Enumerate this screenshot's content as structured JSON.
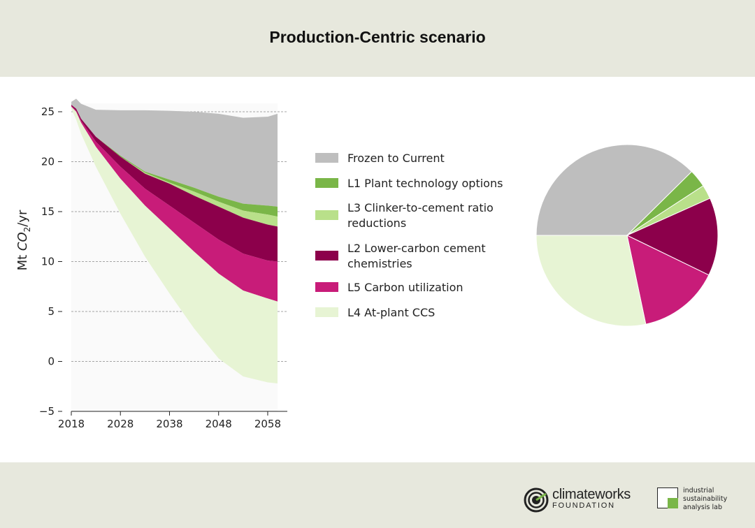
{
  "header": {
    "title": "Production-Centric scenario"
  },
  "chart_data": {
    "type": "area",
    "stacked": true,
    "title": "Production-Centric scenario",
    "xlabel": "",
    "ylabel": "Mt CO2/yr",
    "ylabel_parts": {
      "prefix": "Mt ",
      "italic": "CO",
      "sub": "2",
      "suffix": "/yr"
    },
    "xlim": [
      2018,
      2060
    ],
    "ylim": [
      -5,
      26.5
    ],
    "x_ticks": [
      2018,
      2028,
      2038,
      2048,
      2058
    ],
    "x_tick_labels": [
      "2018",
      "2028",
      "2038",
      "2048",
      "2058"
    ],
    "y_ticks": [
      -5,
      0,
      5,
      10,
      15,
      20,
      25
    ],
    "y_tick_labels": [
      "−5",
      "0",
      "5",
      "10",
      "15",
      "20",
      "25"
    ],
    "grid": "horizontal dashed",
    "x": [
      2018,
      2019,
      2020,
      2023,
      2028,
      2033,
      2038,
      2043,
      2048,
      2053,
      2058,
      2060
    ],
    "boundaries": {
      "top": [
        26.0,
        26.3,
        25.8,
        25.2,
        25.15,
        25.15,
        25.1,
        25.0,
        24.8,
        24.4,
        24.5,
        24.8
      ],
      "after_frozen": [
        25.7,
        25.3,
        24.3,
        22.5,
        20.6,
        19.0,
        18.2,
        17.4,
        16.5,
        15.8,
        15.6,
        15.5
      ],
      "after_l1": [
        25.7,
        25.3,
        24.3,
        22.5,
        20.5,
        18.9,
        17.9,
        17.0,
        16.0,
        15.1,
        14.7,
        14.5
      ],
      "after_l3": [
        25.7,
        25.3,
        24.3,
        22.5,
        20.5,
        18.8,
        17.8,
        16.6,
        15.5,
        14.4,
        13.7,
        13.5
      ],
      "after_l2": [
        25.6,
        25.1,
        24.1,
        22.0,
        19.5,
        17.3,
        15.6,
        13.9,
        12.2,
        10.8,
        10.1,
        10.0
      ],
      "after_l5": [
        25.5,
        25.0,
        23.9,
        21.5,
        18.3,
        15.6,
        13.3,
        11.0,
        8.8,
        7.1,
        6.3,
        6.0
      ],
      "after_l4": [
        25.3,
        24.2,
        22.8,
        19.5,
        14.8,
        10.5,
        6.8,
        3.3,
        0.3,
        -1.5,
        -2.1,
        -2.2
      ]
    },
    "series": [
      {
        "name": "Frozen to Current",
        "color": "#bebebe",
        "upper": "top",
        "lower": "after_frozen",
        "pie_share": 0.376
      },
      {
        "name": "L1 Plant technology options",
        "color": "#7ab648",
        "upper": "after_frozen",
        "lower": "after_l1",
        "pie_share": 0.032
      },
      {
        "name": "L3 Clinker-to-cement ratio reductions",
        "color": "#b9e08a",
        "upper": "after_l1",
        "lower": "after_l3",
        "pie_share": 0.025
      },
      {
        "name": "L2 Lower-carbon cement chemistries",
        "color": "#8c004b",
        "upper": "after_l3",
        "lower": "after_l2",
        "pie_share": 0.139
      },
      {
        "name": "L5 Carbon utilization",
        "color": "#c81c79",
        "upper": "after_l2",
        "lower": "after_l5",
        "pie_share": 0.145
      },
      {
        "name": "L4 At-plant CCS",
        "color": "#e7f4d4",
        "upper": "after_l5",
        "lower": "after_l4",
        "pie_share": 0.283
      }
    ],
    "legend": {
      "placement": "right",
      "lines": [
        [
          "Frozen to Current"
        ],
        [
          "L1 Plant technology options"
        ],
        [
          "L3 Clinker-to-cement ratio",
          "reductions"
        ],
        [
          "L2 Lower-carbon cement",
          "chemistries"
        ],
        [
          "L5 Carbon utilization"
        ],
        [
          "L4 At-plant CCS"
        ]
      ]
    },
    "pie": {
      "start_angle_deg": 180,
      "direction": "clockwise",
      "order": [
        0,
        1,
        2,
        3,
        4,
        5
      ]
    }
  },
  "footer": {
    "climateworks": {
      "name": "climateworks",
      "sub": "FOUNDATION"
    },
    "isal": {
      "line1": "industrial",
      "line2": "sustainability",
      "line3": "analysis lab"
    }
  }
}
